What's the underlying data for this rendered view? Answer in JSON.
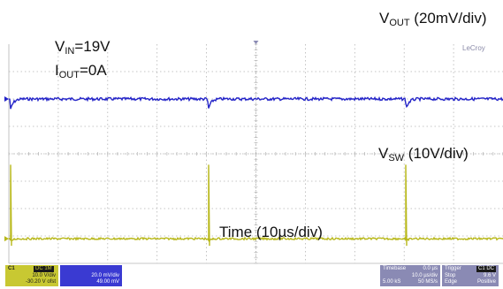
{
  "annotations": {
    "vout": {
      "main": "V",
      "sub": "OUT",
      "rest": " (20mV/div)"
    },
    "vin": {
      "main": "V",
      "sub": "IN",
      "rest": "=19V"
    },
    "iout": {
      "main": "I",
      "sub": "OUT",
      "rest": "=0A"
    },
    "vsw": {
      "main": "V",
      "sub": "SW",
      "rest": " (10V/div)"
    },
    "time": "Time (10µs/div)"
  },
  "brand": "LeCroy",
  "panels": {
    "c1": {
      "badge": "C1",
      "badge2": "DC 1M",
      "line1": "10.0 V/div",
      "line2": "-30.20 V ofst"
    },
    "c2": {
      "line1": "20.0 mV/div",
      "line2": "49.00 mV"
    },
    "timebase": {
      "label": "Timebase",
      "value": "0.0 µs",
      "line2": "10.0 µs/div",
      "line3a": "5.00 kS",
      "line3b": "50 MS/s"
    },
    "trigger": {
      "label": "Trigger",
      "badge": "C1 DC",
      "value": "9.6 V",
      "line2a": "Stop",
      "line3a": "Edge",
      "line3b": "Positive"
    }
  },
  "chart_data": {
    "type": "line",
    "grid": true,
    "divisions": {
      "x": 10,
      "y": 8
    },
    "xlabel": "Time (10µs/div)",
    "xlim": [
      0,
      100
    ],
    "colors": {
      "vout": "#2424c8",
      "vsw": "#b8b81a",
      "grid": "#b4b4b4",
      "c1_panel": "#c8c832",
      "c2_panel": "#3a3ad2",
      "right_panel": "#8a8ab4"
    },
    "series": [
      {
        "name": "VOUT (20mV/div)",
        "trace_level_div": 6.0,
        "spike_times": [
          0,
          40,
          80
        ],
        "spike_depth_div": -0.4
      },
      {
        "name": "VSW (10V/div)",
        "trace_level_div": 0.9,
        "spike_times": [
          0,
          40,
          80
        ],
        "spike_height_div": 2.7
      }
    ]
  }
}
